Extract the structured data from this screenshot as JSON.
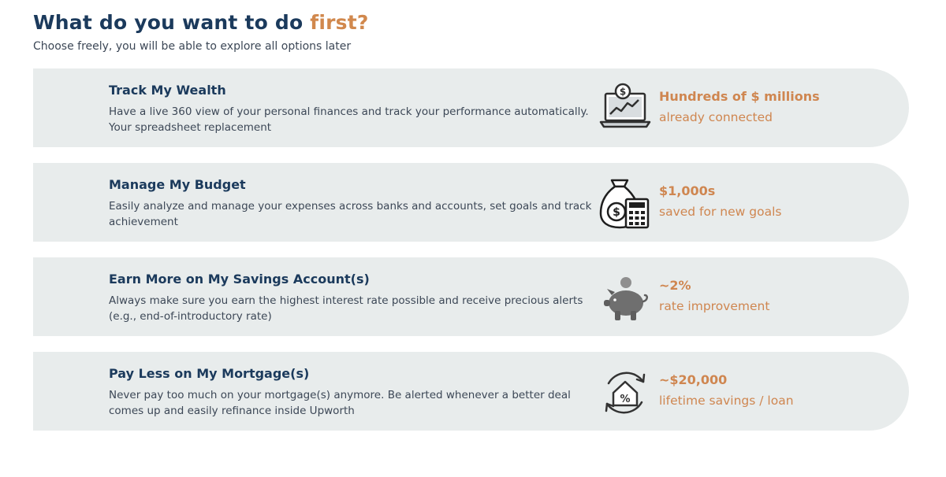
{
  "header": {
    "title_main": "What do you want to do ",
    "title_accent": "first?",
    "subtitle": "Choose freely, you will be able to explore all options later"
  },
  "options": [
    {
      "title": "Track My Wealth",
      "description": "Have a live 360 view of your personal finances and track your performance automatically. Your spreadsheet replacement",
      "icon": "laptop-dollar-chart-icon",
      "stat_value": "Hundreds of $ millions",
      "stat_label": "already connected"
    },
    {
      "title": "Manage My Budget",
      "description": "Easily analyze and manage your expenses across banks and accounts, set goals and track achievement",
      "icon": "money-bag-calculator-icon",
      "stat_value": "$1,000s",
      "stat_label": "saved for new goals"
    },
    {
      "title": "Earn More on My Savings Account(s)",
      "description": "Always make sure you earn the highest interest rate possible and receive precious alerts (e.g., end-of-introductory rate)",
      "icon": "piggy-bank-icon",
      "stat_value": "~2%",
      "stat_label": "rate improvement"
    },
    {
      "title": "Pay Less on My Mortgage(s)",
      "description": "Never pay too much on your mortgage(s) anymore. Be alerted whenever a better deal comes up and easily refinance inside Upworth",
      "icon": "house-percent-refresh-icon",
      "stat_value": "~$20,000",
      "stat_label": "lifetime savings / loan"
    }
  ],
  "colors": {
    "navy": "#1b3a5c",
    "accent": "#d1884d",
    "card_bg": "#e8ecec"
  }
}
